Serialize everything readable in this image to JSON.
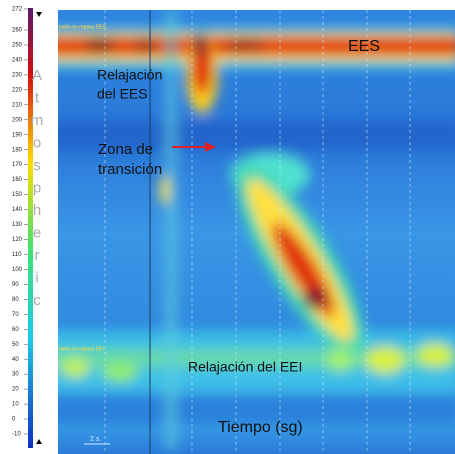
{
  "scale": {
    "ticks": [
      272,
      260,
      250,
      240,
      230,
      220,
      210,
      200,
      190,
      180,
      170,
      160,
      150,
      140,
      130,
      120,
      110,
      100,
      90,
      80,
      70,
      60,
      50,
      40,
      30,
      20,
      10,
      0,
      -10
    ],
    "letters": [
      "A",
      "t",
      "m",
      "o",
      "s",
      "p",
      "h",
      "e",
      "r",
      "i",
      "c"
    ]
  },
  "plot": {
    "upper_tag": "esión en reposo EES",
    "lower_tag": "esión en reposo EEI",
    "time_bar": "2 s."
  },
  "annotations": {
    "ees": "EES",
    "ees_relax_1": "Relajación",
    "ees_relax_2": "del EES",
    "transition_1": "Zona de",
    "transition_2": "transición",
    "eei_relax": "Relajación del EEI",
    "time": "Tiempo (sg)"
  }
}
